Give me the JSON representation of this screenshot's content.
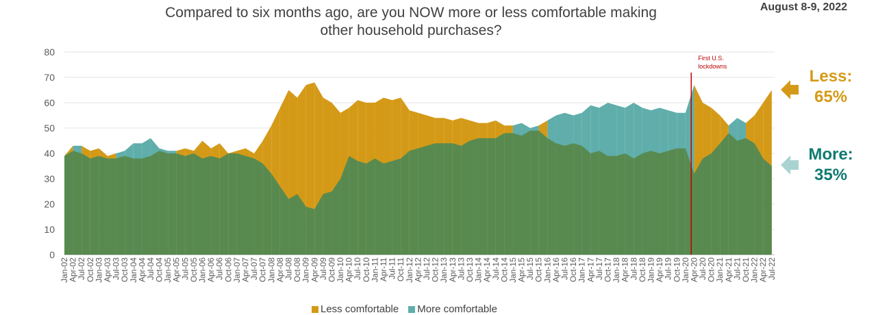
{
  "header": {
    "title_line1": "Compared to six months ago, are you NOW more or less comfortable making",
    "title_line2": "other household purchases?",
    "date": "August 8-9, 2022"
  },
  "annotation": {
    "line1": "First U.S.",
    "line2": "lockdowns",
    "date": "Mar-20"
  },
  "callouts": {
    "less_label": "Less:",
    "less_value": "65%",
    "more_label": "More:",
    "more_value": "35%"
  },
  "legend": {
    "less": "Less comfortable",
    "more": "More comfortable"
  },
  "colors": {
    "less": "#D49A17",
    "more": "#5FAEAB",
    "overlap": "#588A50",
    "annotation": "#C00000",
    "more_text": "#0F7A72"
  },
  "chart_data": {
    "type": "area",
    "ylim": [
      0,
      80
    ],
    "yticks": [
      0,
      10,
      20,
      30,
      40,
      50,
      60,
      70,
      80
    ],
    "x_start": "Jan-02",
    "x_end": "Aug-22",
    "x_tick_labels": [
      "Jan-02",
      "Apr-02",
      "Jul-02",
      "Oct-02",
      "Jan-03",
      "Apr-03",
      "Jul-03",
      "Oct-03",
      "Jan-04",
      "Apr-04",
      "Jul-04",
      "Oct-04",
      "Jan-05",
      "Apr-05",
      "Jul-05",
      "Oct-05",
      "Jan-06",
      "Apr-06",
      "Jul-06",
      "Oct-06",
      "Jan-07",
      "Apr-07",
      "Jul-07",
      "Oct-07",
      "Jan-08",
      "Apr-08",
      "Jul-08",
      "Oct-08",
      "Jan-09",
      "Apr-09",
      "Jul-09",
      "Oct-09",
      "Jan-10",
      "Apr-10",
      "Jul-10",
      "Oct-10",
      "Jan-11",
      "Apr-11",
      "Jul-11",
      "Oct-11",
      "Jan-12",
      "Apr-12",
      "Jul-12",
      "Oct-12",
      "Jan-13",
      "Apr-13",
      "Jul-13",
      "Oct-13",
      "Jan-14",
      "Apr-14",
      "Jul-14",
      "Oct-14",
      "Jan-15",
      "Apr-15",
      "Jul-15",
      "Oct-15",
      "Jan-16",
      "Apr-16",
      "Jul-16",
      "Oct-16",
      "Jan-17",
      "Apr-17",
      "Jul-17",
      "Oct-17",
      "Jan-18",
      "Apr-18",
      "Jul-18",
      "Oct-18",
      "Jan-19",
      "Apr-19",
      "Jul-19",
      "Oct-19",
      "Jan-20",
      "Apr-20",
      "Jul-20",
      "Oct-20",
      "Jan-21",
      "Apr-21",
      "Jul-21",
      "Oct-21",
      "Jan-22",
      "Apr-22",
      "Jul-22"
    ],
    "series": [
      {
        "name": "Less comfortable",
        "points": [
          [
            "Jan-02",
            39
          ],
          [
            "Apr-02",
            41
          ],
          [
            "Jul-02",
            43
          ],
          [
            "Oct-02",
            41
          ],
          [
            "Jan-03",
            42
          ],
          [
            "Apr-03",
            39
          ],
          [
            "Jul-03",
            38
          ],
          [
            "Oct-03",
            39
          ],
          [
            "Jan-04",
            38
          ],
          [
            "Apr-04",
            38
          ],
          [
            "Jul-04",
            39
          ],
          [
            "Oct-04",
            41
          ],
          [
            "Jan-05",
            40
          ],
          [
            "Apr-05",
            41
          ],
          [
            "Jul-05",
            42
          ],
          [
            "Oct-05",
            41
          ],
          [
            "Jan-06",
            45
          ],
          [
            "Apr-06",
            42
          ],
          [
            "Jul-06",
            44
          ],
          [
            "Oct-06",
            40
          ],
          [
            "Jan-07",
            41
          ],
          [
            "Apr-07",
            42
          ],
          [
            "Jul-07",
            40
          ],
          [
            "Oct-07",
            45
          ],
          [
            "Jan-08",
            51
          ],
          [
            "Apr-08",
            58
          ],
          [
            "Jul-08",
            65
          ],
          [
            "Oct-08",
            62
          ],
          [
            "Jan-09",
            67
          ],
          [
            "Apr-09",
            68
          ],
          [
            "Jul-09",
            62
          ],
          [
            "Oct-09",
            60
          ],
          [
            "Jan-10",
            56
          ],
          [
            "Apr-10",
            58
          ],
          [
            "Jul-10",
            61
          ],
          [
            "Oct-10",
            60
          ],
          [
            "Jan-11",
            60
          ],
          [
            "Apr-11",
            62
          ],
          [
            "Jul-11",
            61
          ],
          [
            "Oct-11",
            62
          ],
          [
            "Jan-12",
            57
          ],
          [
            "Apr-12",
            56
          ],
          [
            "Jul-12",
            55
          ],
          [
            "Oct-12",
            54
          ],
          [
            "Jan-13",
            54
          ],
          [
            "Apr-13",
            53
          ],
          [
            "Jul-13",
            54
          ],
          [
            "Oct-13",
            53
          ],
          [
            "Jan-14",
            52
          ],
          [
            "Apr-14",
            52
          ],
          [
            "Jul-14",
            53
          ],
          [
            "Oct-14",
            51
          ],
          [
            "Jan-15",
            48
          ],
          [
            "Apr-15",
            47
          ],
          [
            "Jul-15",
            49
          ],
          [
            "Oct-15",
            51
          ],
          [
            "Jan-16",
            46
          ],
          [
            "Apr-16",
            44
          ],
          [
            "Jul-16",
            43
          ],
          [
            "Oct-16",
            44
          ],
          [
            "Jan-17",
            43
          ],
          [
            "Apr-17",
            40
          ],
          [
            "Jul-17",
            41
          ],
          [
            "Oct-17",
            39
          ],
          [
            "Jan-18",
            39
          ],
          [
            "Apr-18",
            40
          ],
          [
            "Jul-18",
            38
          ],
          [
            "Oct-18",
            40
          ],
          [
            "Jan-19",
            41
          ],
          [
            "Apr-19",
            40
          ],
          [
            "Jul-19",
            41
          ],
          [
            "Oct-19",
            42
          ],
          [
            "Jan-20",
            42
          ],
          [
            "Apr-20",
            67
          ],
          [
            "Jul-20",
            60
          ],
          [
            "Oct-20",
            58
          ],
          [
            "Jan-21",
            55
          ],
          [
            "Apr-21",
            48
          ],
          [
            "Jul-21",
            45
          ],
          [
            "Oct-21",
            52
          ],
          [
            "Jan-22",
            55
          ],
          [
            "Apr-22",
            60
          ],
          [
            "Jul-22",
            65
          ]
        ]
      },
      {
        "name": "More comfortable",
        "points": [
          [
            "Jan-02",
            39
          ],
          [
            "Apr-02",
            43
          ],
          [
            "Jul-02",
            40
          ],
          [
            "Oct-02",
            38
          ],
          [
            "Jan-03",
            39
          ],
          [
            "Apr-03",
            38
          ],
          [
            "Jul-03",
            40
          ],
          [
            "Oct-03",
            41
          ],
          [
            "Jan-04",
            44
          ],
          [
            "Apr-04",
            44
          ],
          [
            "Jul-04",
            46
          ],
          [
            "Oct-04",
            42
          ],
          [
            "Jan-05",
            41
          ],
          [
            "Apr-05",
            40
          ],
          [
            "Jul-05",
            39
          ],
          [
            "Oct-05",
            40
          ],
          [
            "Jan-06",
            38
          ],
          [
            "Apr-06",
            39
          ],
          [
            "Jul-06",
            38
          ],
          [
            "Oct-06",
            40
          ],
          [
            "Jan-07",
            40
          ],
          [
            "Apr-07",
            39
          ],
          [
            "Jul-07",
            38
          ],
          [
            "Oct-07",
            36
          ],
          [
            "Jan-08",
            32
          ],
          [
            "Apr-08",
            27
          ],
          [
            "Jul-08",
            22
          ],
          [
            "Oct-08",
            24
          ],
          [
            "Jan-09",
            19
          ],
          [
            "Apr-09",
            18
          ],
          [
            "Jul-09",
            24
          ],
          [
            "Oct-09",
            25
          ],
          [
            "Jan-10",
            30
          ],
          [
            "Apr-10",
            39
          ],
          [
            "Jul-10",
            37
          ],
          [
            "Oct-10",
            36
          ],
          [
            "Jan-11",
            38
          ],
          [
            "Apr-11",
            36
          ],
          [
            "Jul-11",
            37
          ],
          [
            "Oct-11",
            38
          ],
          [
            "Jan-12",
            41
          ],
          [
            "Apr-12",
            42
          ],
          [
            "Jul-12",
            43
          ],
          [
            "Oct-12",
            44
          ],
          [
            "Jan-13",
            44
          ],
          [
            "Apr-13",
            44
          ],
          [
            "Jul-13",
            43
          ],
          [
            "Oct-13",
            45
          ],
          [
            "Jan-14",
            46
          ],
          [
            "Apr-14",
            46
          ],
          [
            "Jul-14",
            46
          ],
          [
            "Oct-14",
            48
          ],
          [
            "Jan-15",
            51
          ],
          [
            "Apr-15",
            52
          ],
          [
            "Jul-15",
            50
          ],
          [
            "Oct-15",
            49
          ],
          [
            "Jan-16",
            53
          ],
          [
            "Apr-16",
            55
          ],
          [
            "Jul-16",
            56
          ],
          [
            "Oct-16",
            55
          ],
          [
            "Jan-17",
            56
          ],
          [
            "Apr-17",
            59
          ],
          [
            "Jul-17",
            58
          ],
          [
            "Oct-17",
            60
          ],
          [
            "Jan-18",
            59
          ],
          [
            "Apr-18",
            58
          ],
          [
            "Jul-18",
            60
          ],
          [
            "Oct-18",
            58
          ],
          [
            "Jan-19",
            57
          ],
          [
            "Apr-19",
            58
          ],
          [
            "Jul-19",
            57
          ],
          [
            "Oct-19",
            56
          ],
          [
            "Jan-20",
            56
          ],
          [
            "Apr-20",
            32
          ],
          [
            "Jul-20",
            38
          ],
          [
            "Oct-20",
            40
          ],
          [
            "Jan-21",
            44
          ],
          [
            "Apr-21",
            51
          ],
          [
            "Jul-21",
            54
          ],
          [
            "Oct-21",
            46
          ],
          [
            "Jan-22",
            44
          ],
          [
            "Apr-22",
            38
          ],
          [
            "Jul-22",
            35
          ]
        ]
      }
    ]
  }
}
